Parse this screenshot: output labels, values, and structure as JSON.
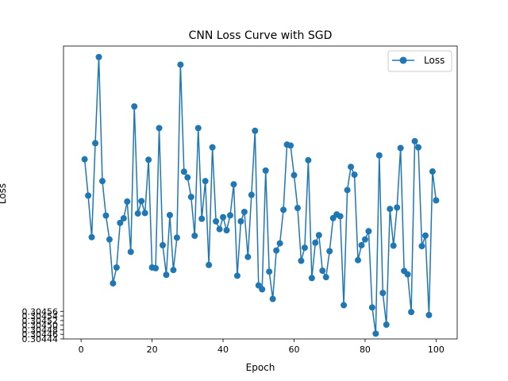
{
  "chart_data": {
    "type": "line",
    "title": "CNN Loss Curve with SGD",
    "xlabel": "Epoch",
    "ylabel": "Loss",
    "xlim": [
      -4.95,
      105.95
    ],
    "ylim": [
      0.30444,
      0.305715
    ],
    "xticks": [
      0,
      20,
      40,
      60,
      80,
      100
    ],
    "yticks": [
      0.30444,
      0.30446,
      0.30448,
      0.3045,
      0.30452,
      0.30454,
      0.30456
    ],
    "ytick_labels": [
      "0.30444",
      "0.30446",
      "0.30448",
      "0.30450",
      "0.30452",
      "0.30454",
      "0.30456"
    ],
    "grid": false,
    "legend_position": "top-right",
    "colors": {
      "series": "#1f77b4"
    },
    "series": [
      {
        "name": "Loss",
        "x": [
          1,
          2,
          3,
          4,
          5,
          6,
          7,
          8,
          9,
          10,
          11,
          12,
          13,
          14,
          15,
          16,
          17,
          18,
          19,
          20,
          21,
          22,
          23,
          24,
          25,
          26,
          27,
          28,
          29,
          30,
          31,
          32,
          33,
          34,
          35,
          36,
          37,
          38,
          39,
          40,
          41,
          42,
          43,
          44,
          45,
          46,
          47,
          48,
          49,
          50,
          51,
          52,
          53,
          54,
          55,
          56,
          57,
          58,
          59,
          60,
          61,
          62,
          63,
          64,
          65,
          66,
          67,
          68,
          69,
          70,
          71,
          72,
          73,
          74,
          75,
          76,
          77,
          78,
          79,
          80,
          81,
          82,
          83,
          84,
          85,
          86,
          87,
          88,
          89,
          90,
          91,
          92,
          93,
          94,
          95,
          96,
          97,
          98,
          99,
          100
        ],
        "y": [
          0.305222,
          0.305064,
          0.304883,
          0.305292,
          0.305667,
          0.305127,
          0.304977,
          0.304873,
          0.304682,
          0.304751,
          0.304945,
          0.304965,
          0.305038,
          0.304819,
          0.305452,
          0.304986,
          0.30504,
          0.304988,
          0.30522,
          0.304751,
          0.304748,
          0.305358,
          0.304848,
          0.304719,
          0.304979,
          0.30474,
          0.304881,
          0.305634,
          0.305168,
          0.305143,
          0.305058,
          0.304889,
          0.305358,
          0.304963,
          0.305127,
          0.304762,
          0.305274,
          0.304952,
          0.304918,
          0.30497,
          0.304913,
          0.304978,
          0.305113,
          0.304715,
          0.304952,
          0.304993,
          0.304797,
          0.305067,
          0.305346,
          0.304673,
          0.304656,
          0.305173,
          0.304733,
          0.304614,
          0.304825,
          0.304856,
          0.305002,
          0.305286,
          0.305282,
          0.305153,
          0.30501,
          0.30478,
          0.304837,
          0.305218,
          0.304705,
          0.304859,
          0.304892,
          0.304737,
          0.304709,
          0.304822,
          0.304966,
          0.304982,
          0.304974,
          0.304587,
          0.305088,
          0.305189,
          0.305155,
          0.304783,
          0.304848,
          0.304873,
          0.304909,
          0.304577,
          0.304463,
          0.305239,
          0.30464,
          0.304502,
          0.305006,
          0.304846,
          0.305012,
          0.305271,
          0.304736,
          0.304721,
          0.304557,
          0.305301,
          0.305274,
          0.304844,
          0.30489,
          0.304544,
          0.305169,
          0.305043
        ]
      }
    ]
  }
}
